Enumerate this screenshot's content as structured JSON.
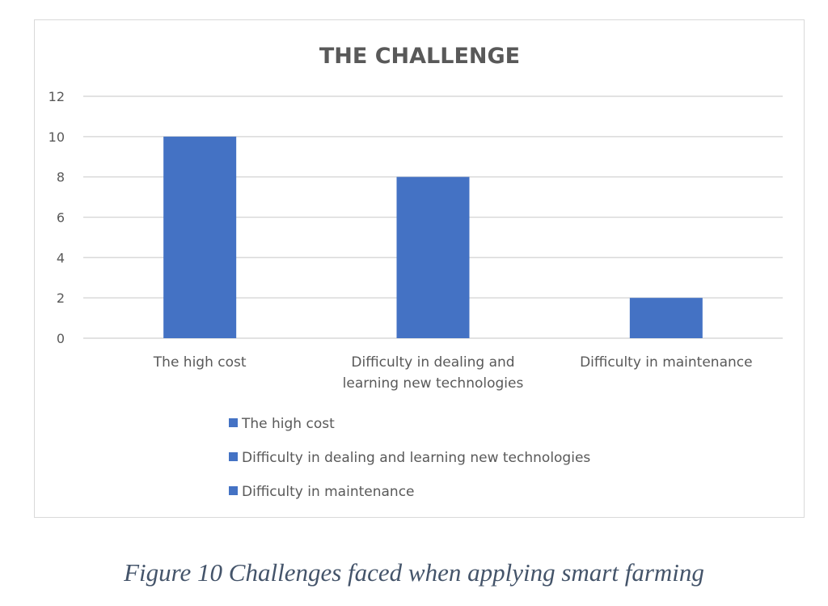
{
  "chart_data": {
    "type": "bar",
    "title": "THE CHALLENGE",
    "categories": [
      "The high cost",
      "Difficulty in dealing and learning new technologies",
      "Difficulty in maintenance"
    ],
    "category_label_lines": [
      [
        "The high cost"
      ],
      [
        "Difficulty in dealing and",
        "learning new technologies"
      ],
      [
        "Difficulty in maintenance"
      ]
    ],
    "values": [
      10,
      8,
      2
    ],
    "ylim": [
      0,
      12
    ],
    "yticks": [
      "0",
      "2",
      "4",
      "6",
      "8",
      "10",
      "12"
    ],
    "xlabel": "",
    "ylabel": "",
    "grid": true,
    "legend_placement": "bottom",
    "legend": [
      "The high cost",
      "Difficulty in dealing and learning new technologies",
      "Difficulty in maintenance"
    ],
    "bar_color": "#4472c4"
  },
  "caption": "Figure 10 Challenges faced when applying smart farming"
}
